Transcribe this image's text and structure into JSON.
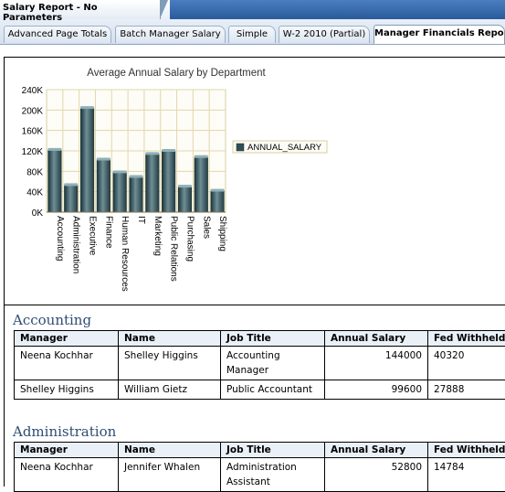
{
  "window": {
    "title": "Salary Report - No Parameters"
  },
  "tabs": [
    {
      "label": "Advanced Page Totals",
      "active": false
    },
    {
      "label": "Batch Manager Salary",
      "active": false
    },
    {
      "label": "Simple",
      "active": false
    },
    {
      "label": "W-2 2010 (Partial)",
      "active": false
    },
    {
      "label": "Manager Financials Repo...",
      "active": true
    }
  ],
  "chart_data": {
    "type": "bar",
    "title": "Average Annual Salary by Department",
    "categories": [
      "Accounting",
      "Administration",
      "Executive",
      "Finance",
      "Human Resources",
      "IT",
      "Marketing",
      "Public Relations",
      "Purchasing",
      "Sales",
      "Shipping"
    ],
    "series": [
      {
        "name": "ANNUAL_SALARY",
        "values": [
          122000,
          53000,
          204000,
          103000,
          78000,
          69000,
          114000,
          120000,
          50000,
          108000,
          42000
        ]
      }
    ],
    "ylim": [
      0,
      240000
    ],
    "yticks": [
      "0K",
      "40K",
      "80K",
      "120K",
      "160K",
      "200K",
      "240K"
    ],
    "ytick_values": [
      0,
      40000,
      80000,
      120000,
      160000,
      200000,
      240000
    ],
    "grid": true,
    "legend": "right",
    "colors": {
      "bar": "#2f4f57",
      "grid": "#e2d8a8",
      "title": "#333333"
    }
  },
  "sections": [
    {
      "title": "Accounting",
      "headers": [
        "Manager",
        "Name",
        "Job Title",
        "Annual Salary",
        "Fed Withheld"
      ],
      "rows": [
        [
          "Neena Kochhar",
          "Shelley Higgins",
          "Accounting Manager",
          "144000",
          "40320"
        ],
        [
          "Shelley Higgins",
          "William Gietz",
          "Public Accountant",
          "99600",
          "27888"
        ]
      ]
    },
    {
      "title": "Administration",
      "headers": [
        "Manager",
        "Name",
        "Job Title",
        "Annual Salary",
        "Fed Withheld"
      ],
      "rows": [
        [
          "Neena Kochhar",
          "Jennifer Whalen",
          "Administration Assistant",
          "52800",
          "14784"
        ]
      ]
    }
  ]
}
